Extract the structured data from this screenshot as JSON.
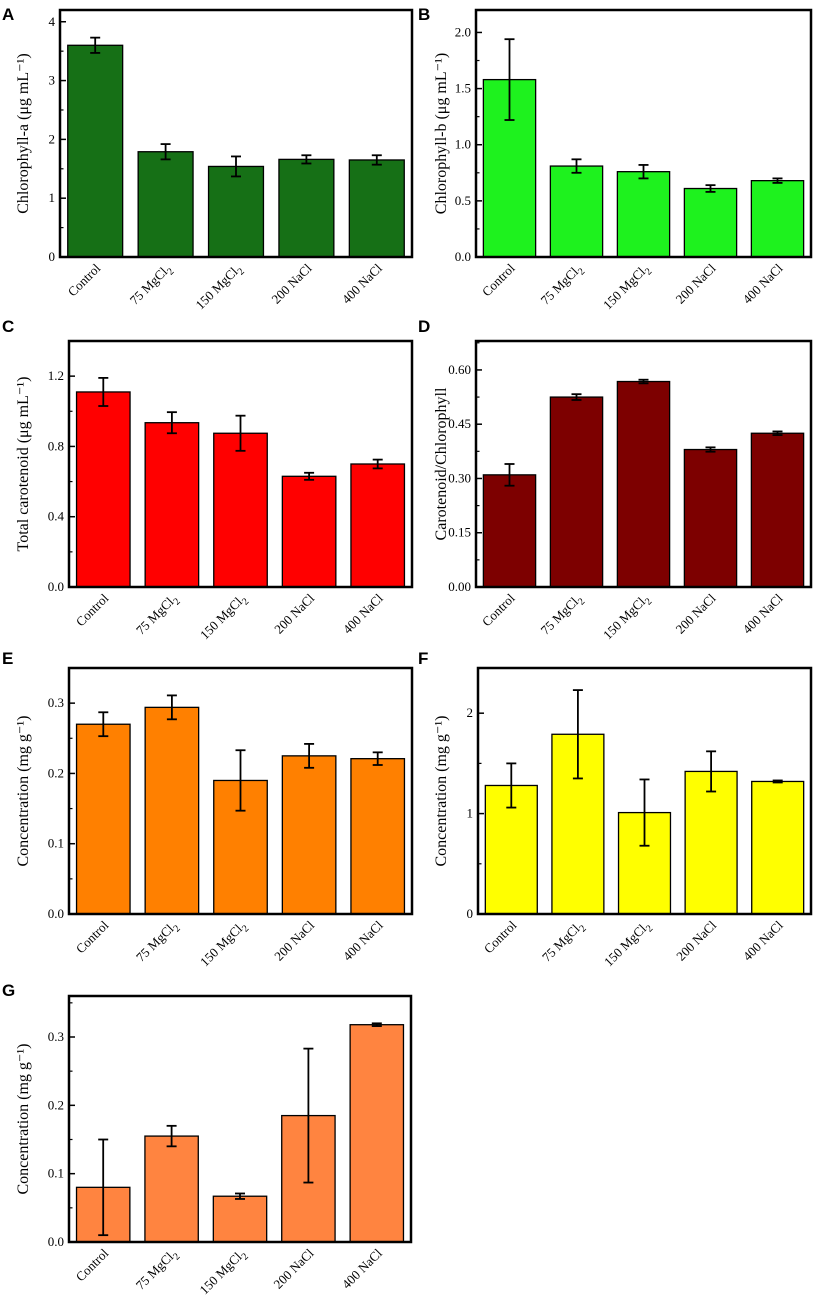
{
  "chart_data": [
    {
      "panel": "A",
      "type": "bar",
      "categories": [
        "Control",
        "75 MgCl_2",
        "150 MgCl_2",
        "200 NaCl",
        "400 NaCl"
      ],
      "values": [
        3.6,
        1.79,
        1.54,
        1.66,
        1.65
      ],
      "errors": [
        0.13,
        0.13,
        0.17,
        0.07,
        0.08
      ],
      "ylim": [
        0,
        4.2
      ],
      "yticks": [
        0,
        1,
        2,
        3,
        4
      ],
      "ylabel": "Chlorophyll-a (μg mL⁻¹)",
      "color": "#167016"
    },
    {
      "panel": "B",
      "type": "bar",
      "categories": [
        "Control",
        "75 MgCl_2",
        "150 MgCl_2",
        "200 NaCl",
        "400 NaCl"
      ],
      "values": [
        1.58,
        0.81,
        0.76,
        0.61,
        0.68
      ],
      "errors": [
        0.36,
        0.06,
        0.06,
        0.03,
        0.02
      ],
      "ylim": [
        0,
        2.2
      ],
      "yticks": [
        0.0,
        0.5,
        1.0,
        1.5,
        2.0
      ],
      "ylabel": "Chlorophyll-b (μg mL⁻¹)",
      "color": "#1ef21e"
    },
    {
      "panel": "C",
      "type": "bar",
      "categories": [
        "Control",
        "75 MgCl_2",
        "150 MgCl_2",
        "200 NaCl",
        "400 NaCl"
      ],
      "values": [
        1.11,
        0.935,
        0.875,
        0.63,
        0.7
      ],
      "errors": [
        0.08,
        0.06,
        0.1,
        0.02,
        0.025
      ],
      "ylim": [
        0,
        1.4
      ],
      "yticks": [
        0.0,
        0.4,
        0.8,
        1.2
      ],
      "ylabel": "Total carotenoid (μg mL⁻¹)",
      "color": "#ff0000"
    },
    {
      "panel": "D",
      "type": "bar",
      "categories": [
        "Control",
        "75 MgCl_2",
        "150 MgCl_2",
        "200 NaCl",
        "400 NaCl"
      ],
      "values": [
        0.31,
        0.525,
        0.568,
        0.38,
        0.425
      ],
      "errors": [
        0.03,
        0.008,
        0.005,
        0.006,
        0.005
      ],
      "ylim": [
        0,
        0.68
      ],
      "yticks": [
        0.0,
        0.15,
        0.3,
        0.45,
        0.6
      ],
      "ylabel": "Carotenoid/Chlorophyll",
      "color": "#7d0000"
    },
    {
      "panel": "E",
      "type": "bar",
      "categories": [
        "Control",
        "75 MgCl_2",
        "150 MgCl_2",
        "200 NaCl",
        "400 NaCl"
      ],
      "values": [
        0.27,
        0.294,
        0.19,
        0.225,
        0.221
      ],
      "errors": [
        0.017,
        0.017,
        0.043,
        0.017,
        0.009
      ],
      "ylim": [
        0,
        0.35
      ],
      "yticks": [
        0.0,
        0.1,
        0.2,
        0.3
      ],
      "ylabel": "Concentration (mg g⁻¹)",
      "color": "#ff8000"
    },
    {
      "panel": "F",
      "type": "bar",
      "categories": [
        "Control",
        "75 MgCl_2",
        "150 MgCl_2",
        "200 NaCl",
        "400 NaCl"
      ],
      "values": [
        1.28,
        1.79,
        1.01,
        1.42,
        1.32
      ],
      "errors": [
        0.22,
        0.44,
        0.33,
        0.2,
        0.01
      ],
      "ylim": [
        0,
        2.45
      ],
      "yticks": [
        0,
        1,
        2
      ],
      "ylabel": "Concentration (mg g⁻¹)",
      "color": "#ffff00"
    },
    {
      "panel": "G",
      "type": "bar",
      "categories": [
        "Control",
        "75 MgCl_2",
        "150 MgCl_2",
        "200 NaCl",
        "400 NaCl"
      ],
      "values": [
        0.08,
        0.155,
        0.067,
        0.185,
        0.318
      ],
      "errors": [
        0.07,
        0.015,
        0.004,
        0.098,
        0.002
      ],
      "ylim": [
        0,
        0.36
      ],
      "yticks": [
        0.0,
        0.1,
        0.2,
        0.3
      ],
      "ylabel": "Concentration (mg g⁻¹)",
      "color": "#ff8440"
    }
  ]
}
